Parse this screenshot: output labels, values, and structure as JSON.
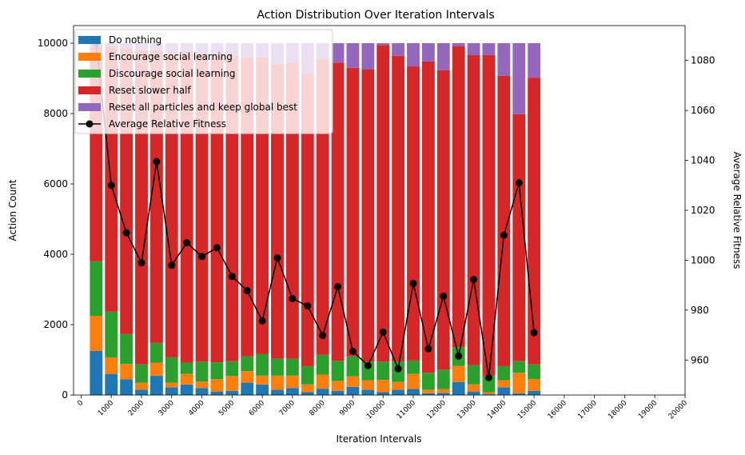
{
  "chart_data": {
    "type": "bar",
    "stacked": true,
    "title": "Action Distribution Over Iteration Intervals",
    "xlabel": "Iteration Intervals",
    "ylabel": "Action Count",
    "y2label": "Average Relative Fitness",
    "x": [
      500,
      1000,
      1500,
      2000,
      2500,
      3000,
      3500,
      4000,
      4500,
      5000,
      5500,
      6000,
      6500,
      7000,
      7500,
      8000,
      8500,
      9000,
      9500,
      10000,
      10500,
      11000,
      11500,
      12000,
      12500,
      13000,
      13500,
      14000,
      14500,
      15000
    ],
    "bar_width": 420,
    "xlim": [
      -250,
      20000
    ],
    "xticks": [
      0,
      1000,
      2000,
      3000,
      4000,
      5000,
      6000,
      7000,
      8000,
      9000,
      10000,
      11000,
      12000,
      13000,
      14000,
      15000,
      16000,
      17000,
      18000,
      19000,
      20000
    ],
    "ylim": [
      0,
      10500
    ],
    "yticks": [
      0,
      2000,
      4000,
      6000,
      8000,
      10000
    ],
    "y2lim": [
      946,
      1094
    ],
    "y2ticks": [
      960,
      980,
      1000,
      1020,
      1040,
      1060,
      1080
    ],
    "legend": "upper left",
    "series": [
      {
        "name": "Do nothing",
        "color": "#1f77b4",
        "values": [
          1250,
          600,
          450,
          150,
          550,
          220,
          300,
          200,
          100,
          120,
          350,
          300,
          150,
          200,
          80,
          180,
          120,
          230,
          150,
          80,
          150,
          170,
          50,
          60,
          370,
          100,
          30,
          220,
          50,
          120
        ]
      },
      {
        "name": "Encourage social learning",
        "color": "#ff7f0e",
        "values": [
          1000,
          470,
          430,
          200,
          370,
          130,
          300,
          180,
          350,
          420,
          330,
          250,
          400,
          350,
          220,
          400,
          280,
          300,
          270,
          350,
          220,
          430,
          100,
          110,
          460,
          200,
          50,
          200,
          580,
          330
        ]
      },
      {
        "name": "Discourage social learning",
        "color": "#2ca02c",
        "values": [
          1550,
          1300,
          850,
          520,
          560,
          720,
          320,
          570,
          480,
          420,
          420,
          620,
          480,
          480,
          520,
          560,
          570,
          570,
          530,
          520,
          580,
          380,
          480,
          550,
          530,
          550,
          470,
          400,
          330,
          420
        ]
      },
      {
        "name": "Reset slower half",
        "color": "#d62728",
        "values": [
          6100,
          7530,
          8120,
          8930,
          8320,
          8630,
          8830,
          8750,
          8720,
          8690,
          8500,
          8430,
          8370,
          8420,
          8330,
          8410,
          8480,
          8200,
          8300,
          9000,
          8690,
          8360,
          8850,
          8510,
          8550,
          8810,
          9110,
          8250,
          7020,
          8150
        ]
      },
      {
        "name": "Reset all particles and keep global best",
        "color": "#9467bd",
        "values": [
          100,
          100,
          150,
          200,
          200,
          300,
          250,
          300,
          350,
          350,
          400,
          400,
          600,
          550,
          850,
          450,
          550,
          700,
          750,
          50,
          360,
          660,
          520,
          770,
          90,
          340,
          340,
          930,
          2020,
          980
        ]
      },
      {
        "name": "Average Relative Fitness",
        "type": "line",
        "axis": "y2",
        "color": "#000000",
        "values": [
          1087,
          1030,
          1011,
          999,
          1039.5,
          998,
          1007,
          1001.5,
          1005,
          993.5,
          987.8,
          975.7,
          1000.9,
          984.6,
          981.7,
          969.9,
          989.4,
          963.5,
          957.8,
          971.2,
          956.5,
          990.7,
          964.5,
          985.6,
          961.6,
          992.3,
          953,
          1010,
          1031,
          971
        ]
      }
    ]
  }
}
